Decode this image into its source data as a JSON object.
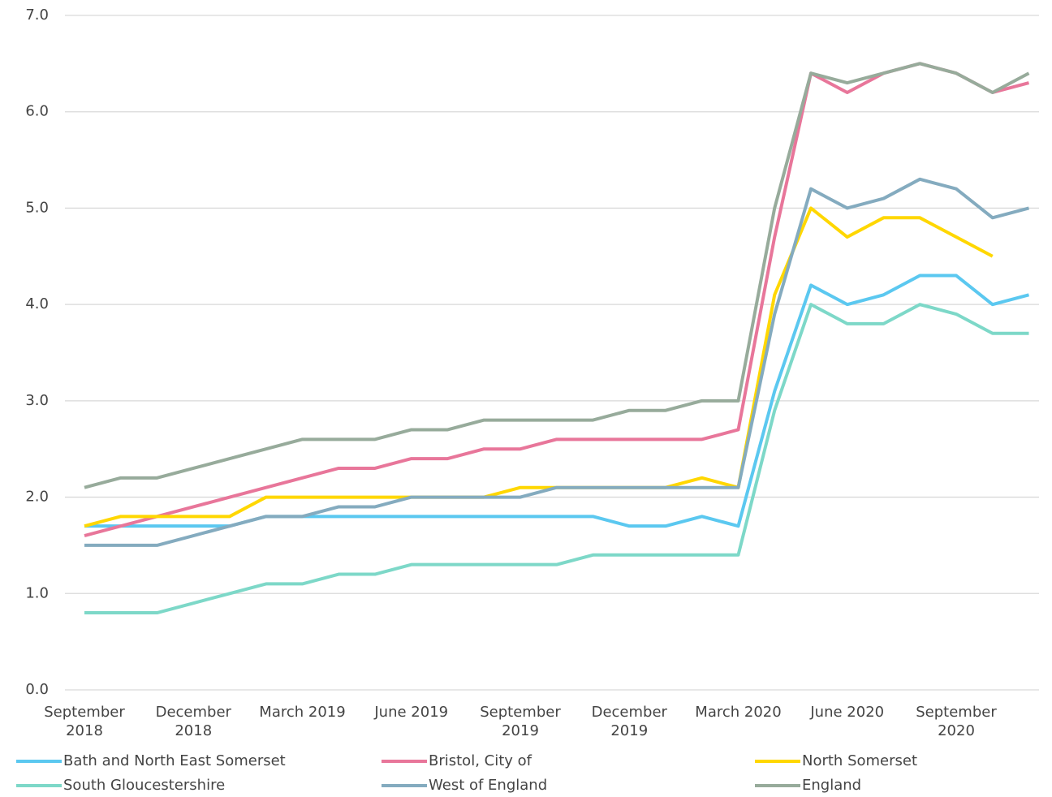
{
  "chart_data": {
    "type": "line",
    "categories": [
      "September 2018",
      null,
      null,
      "December 2018",
      null,
      null,
      "March 2019",
      null,
      null,
      "June 2019",
      null,
      null,
      "September 2019",
      null,
      null,
      "December 2019",
      null,
      null,
      "March 2020",
      null,
      null,
      "June 2020",
      null,
      null,
      "September 2020",
      null,
      null
    ],
    "series": [
      {
        "name": "Bath and North East Somerset",
        "color": "#5bc8f0",
        "values": [
          1.7,
          1.7,
          1.7,
          1.7,
          1.7,
          1.8,
          1.8,
          1.8,
          1.8,
          1.8,
          1.8,
          1.8,
          1.8,
          1.8,
          1.8,
          1.7,
          1.7,
          1.8,
          1.7,
          3.1,
          4.2,
          4.0,
          4.1,
          4.3,
          4.3,
          4.0,
          4.1
        ]
      },
      {
        "name": "Bristol, City of",
        "color": "#e8769a",
        "values": [
          1.6,
          1.7,
          1.8,
          1.9,
          2.0,
          2.1,
          2.2,
          2.3,
          2.3,
          2.4,
          2.4,
          2.5,
          2.5,
          2.6,
          2.6,
          2.6,
          2.6,
          2.6,
          2.7,
          4.7,
          6.4,
          6.2,
          6.4,
          6.5,
          6.4,
          6.2,
          6.3
        ]
      },
      {
        "name": "North Somerset",
        "color": "#ffd700",
        "values": [
          1.7,
          1.8,
          1.8,
          1.8,
          1.8,
          2.0,
          2.0,
          2.0,
          2.0,
          2.0,
          2.0,
          2.0,
          2.1,
          2.1,
          2.1,
          2.1,
          2.1,
          2.2,
          2.1,
          4.1,
          5.0,
          4.7,
          4.9,
          4.9,
          4.7,
          4.5,
          null
        ]
      },
      {
        "name": "South Gloucestershire",
        "color": "#7dd8c8",
        "values": [
          0.8,
          0.8,
          0.8,
          0.9,
          1.0,
          1.1,
          1.1,
          1.2,
          1.2,
          1.3,
          1.3,
          1.3,
          1.3,
          1.3,
          1.4,
          1.4,
          1.4,
          1.4,
          1.4,
          2.9,
          4.0,
          3.8,
          3.8,
          4.0,
          3.9,
          3.7,
          3.7
        ]
      },
      {
        "name": "West of England",
        "color": "#84abbf",
        "values": [
          1.5,
          1.5,
          1.5,
          1.6,
          1.7,
          1.8,
          1.8,
          1.9,
          1.9,
          2.0,
          2.0,
          2.0,
          2.0,
          2.1,
          2.1,
          2.1,
          2.1,
          2.1,
          2.1,
          3.9,
          5.2,
          5.0,
          5.1,
          5.3,
          5.2,
          4.9,
          5.0
        ]
      },
      {
        "name": "England",
        "color": "#97ab9b",
        "values": [
          2.1,
          2.2,
          2.2,
          2.3,
          2.4,
          2.5,
          2.6,
          2.6,
          2.6,
          2.7,
          2.7,
          2.8,
          2.8,
          2.8,
          2.8,
          2.9,
          2.9,
          3.0,
          3.0,
          5.0,
          6.4,
          6.3,
          6.4,
          6.5,
          6.4,
          6.2,
          6.4
        ]
      }
    ],
    "ylim": [
      0,
      7
    ],
    "yticks": [
      {
        "value": 0,
        "label": "0.0"
      },
      {
        "value": 1,
        "label": "1.0"
      },
      {
        "value": 2,
        "label": "2.0"
      },
      {
        "value": 3,
        "label": "3.0"
      },
      {
        "value": 4,
        "label": "4.0"
      },
      {
        "value": 5,
        "label": "5.0"
      },
      {
        "value": 6,
        "label": "6.0"
      },
      {
        "value": 7,
        "label": "7.0"
      }
    ],
    "grid": true,
    "legend": "bottom"
  }
}
